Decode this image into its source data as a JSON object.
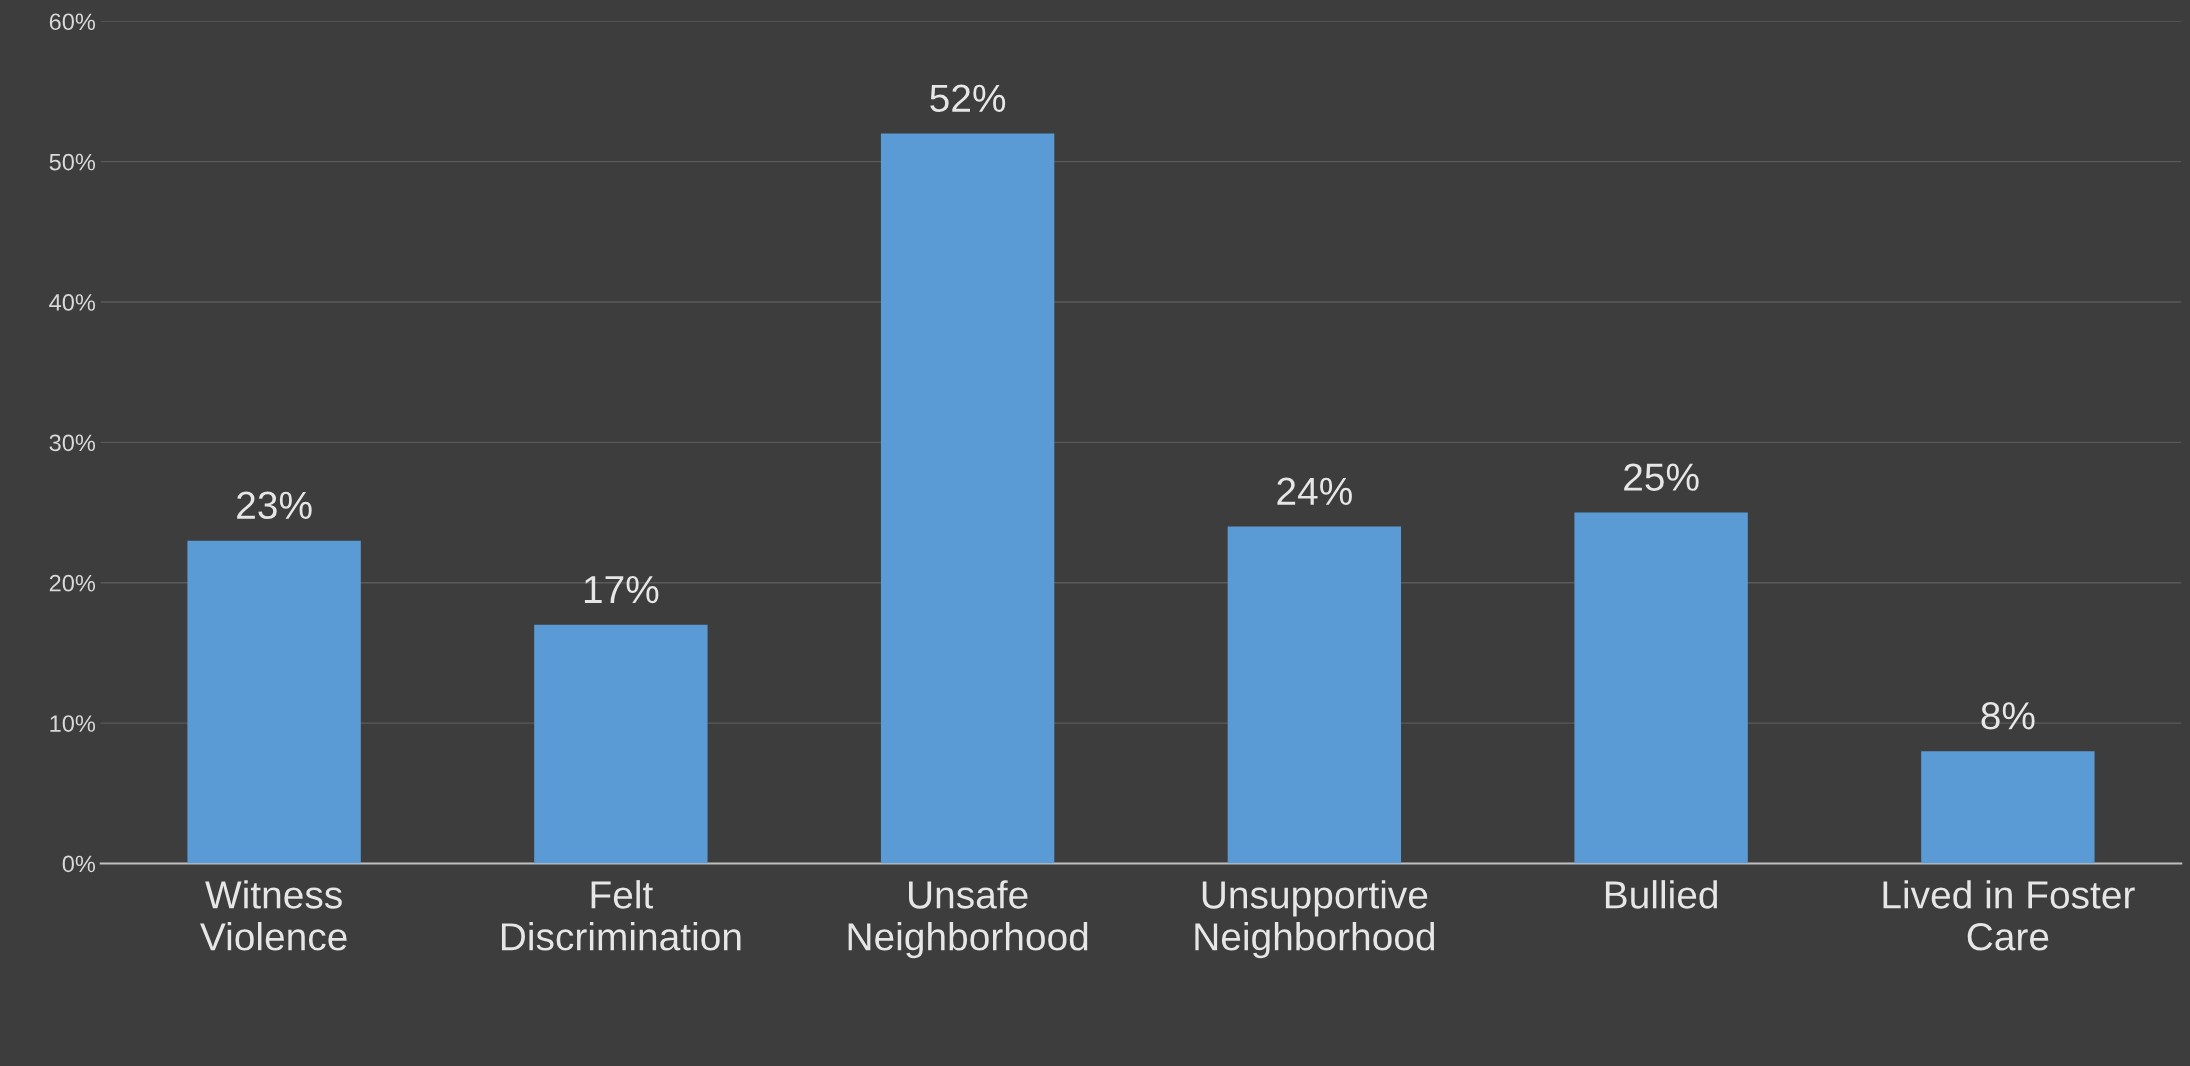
{
  "chart_data": {
    "type": "bar",
    "categories": [
      "Witness\nViolence",
      "Felt\nDiscrimination",
      "Unsafe\nNeighborhood",
      "Unsupportive\nNeighborhood",
      "Bullied",
      "Lived in Foster\nCare"
    ],
    "values": [
      23,
      17,
      52,
      24,
      25,
      8
    ],
    "value_labels": [
      "23%",
      "17%",
      "52%",
      "24%",
      "25%",
      "8%"
    ],
    "color": "#5b9bd5",
    "ylim": [
      0,
      60
    ],
    "yticks": [
      {
        "value": 0,
        "label": "0%"
      },
      {
        "value": 10,
        "label": "10%"
      },
      {
        "value": 20,
        "label": "20%"
      },
      {
        "value": 30,
        "label": "30%"
      },
      {
        "value": 40,
        "label": "40%"
      },
      {
        "value": 50,
        "label": "50%"
      },
      {
        "value": 60,
        "label": "60%"
      }
    ],
    "grid": "y"
  }
}
